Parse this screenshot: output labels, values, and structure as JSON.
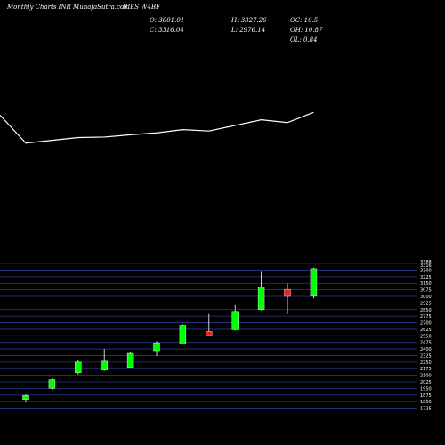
{
  "header": {
    "site": "Monthly Charts INR MunafaSutra.com",
    "symbol": "ICES W4BF",
    "open": "O: 3001.01",
    "close": "C: 3316.04",
    "high": "H: 3327.26",
    "low": "L: 2976.14",
    "oc": "OC: 10.5",
    "oh": "OH: 10.87",
    "ol": "OL: 0.84"
  },
  "chart_data": {
    "type": "candlestick",
    "price_axis": {
      "ticks": [
        "3300",
        "3225",
        "3150",
        "3075",
        "3000",
        "2925",
        "2850",
        "2775",
        "2700",
        "2625",
        "2550",
        "2475",
        "2400",
        "2325",
        "2250",
        "2175",
        "2100",
        "2025",
        "1950",
        "1875",
        "1800",
        "1725"
      ],
      "range": [
        1700,
        3325
      ],
      "extra_labels": [
        "3388",
        "3316"
      ],
      "position": "right"
    },
    "candles": [
      {
        "open": 1825,
        "close": 1870,
        "high": 1880,
        "low": 1790,
        "color": "green"
      },
      {
        "open": 1950,
        "close": 2050,
        "high": 2060,
        "low": 1940,
        "color": "green"
      },
      {
        "open": 2130,
        "close": 2250,
        "high": 2280,
        "low": 2110,
        "color": "green"
      },
      {
        "open": 2160,
        "close": 2260,
        "high": 2400,
        "low": 2150,
        "color": "green"
      },
      {
        "open": 2190,
        "close": 2350,
        "high": 2360,
        "low": 2180,
        "color": "green"
      },
      {
        "open": 2380,
        "close": 2470,
        "high": 2490,
        "low": 2320,
        "color": "green"
      },
      {
        "open": 2460,
        "close": 2670,
        "high": 2680,
        "low": 2450,
        "color": "green"
      },
      {
        "open": 2600,
        "close": 2580,
        "high": 2800,
        "low": 2560,
        "color": "red"
      },
      {
        "open": 2620,
        "close": 2830,
        "high": 2900,
        "low": 2610,
        "color": "green"
      },
      {
        "open": 2850,
        "close": 3110,
        "high": 3280,
        "low": 2840,
        "color": "green"
      },
      {
        "open": 3080,
        "close": 3000,
        "high": 3150,
        "low": 2800,
        "color": "red"
      },
      {
        "open": 3001.01,
        "close": 3316.04,
        "high": 3327.26,
        "low": 2976.14,
        "color": "green"
      }
    ],
    "line_series": [
      0.18,
      0.78,
      0.72,
      0.66,
      0.65,
      0.6,
      0.56,
      0.49,
      0.52,
      0.4,
      0.28,
      0.34,
      0.12
    ],
    "grid": true,
    "colors": {
      "up": "#00ff00",
      "down": "#ff1a1a",
      "line": "#ffffff",
      "grid": "#2a3a8a",
      "background": "#000000"
    }
  }
}
